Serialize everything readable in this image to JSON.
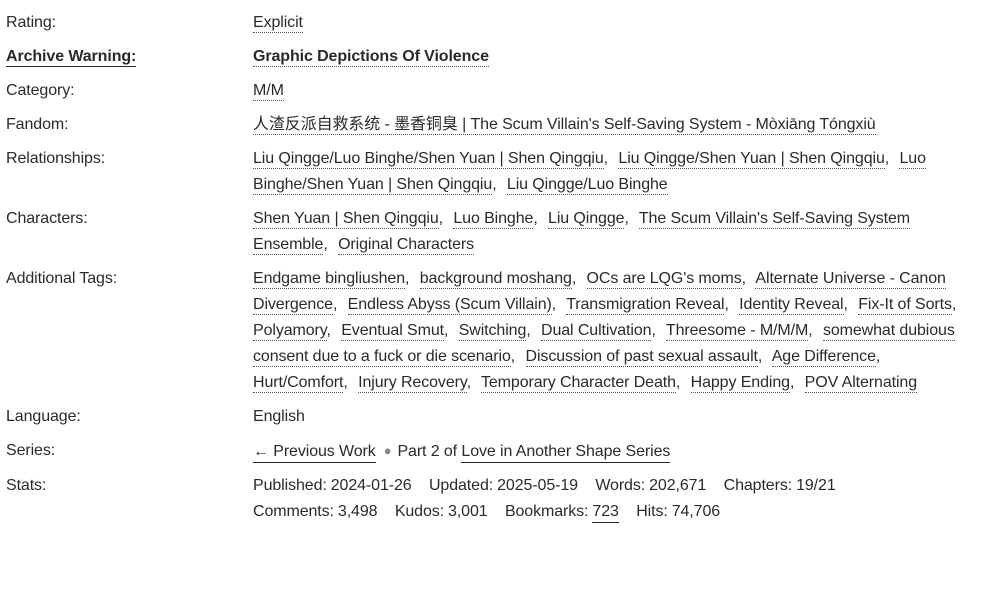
{
  "punct": {
    "comma": ","
  },
  "colors": {
    "text": "#2a2a2a",
    "dotted_underline": "#555555",
    "solid_underline": "#2a2a2a",
    "bullet": "#888888",
    "background": "#ffffff"
  },
  "rating": {
    "label": "Rating:",
    "value": "Explicit"
  },
  "warning": {
    "label": "Archive Warning:",
    "value": "Graphic Depictions Of Violence"
  },
  "category": {
    "label": "Category:",
    "value": "M/M"
  },
  "fandom": {
    "label": "Fandom:",
    "value": "人渣反派自救系统 - 墨香铜臭 | The Scum Villain's Self-Saving System - Mòxiāng Tóngxiù"
  },
  "relationships": {
    "label": "Relationships:",
    "tags": [
      "Liu Qingge/Luo Binghe/Shen Yuan | Shen Qingqiu",
      "Liu Qingge/Shen Yuan | Shen Qingqiu",
      "Luo Binghe/Shen Yuan | Shen Qingqiu",
      "Liu Qingge/Luo Binghe"
    ]
  },
  "characters": {
    "label": "Characters:",
    "tags": [
      "Shen Yuan | Shen Qingqiu",
      "Luo Binghe",
      "Liu Qingge",
      "The Scum Villain's Self-Saving System Ensemble",
      "Original Characters"
    ]
  },
  "additional": {
    "label": "Additional Tags:",
    "tags": [
      "Endgame bingliushen",
      "background moshang",
      "OCs are LQG's moms",
      "Alternate Universe - Canon Divergence",
      "Endless Abyss (Scum Villain)",
      "Transmigration Reveal",
      "Identity Reveal",
      "Fix-It of Sorts",
      "Polyamory",
      "Eventual Smut",
      "Switching",
      "Dual Cultivation",
      "Threesome - M/M/M",
      "somewhat dubious consent due to a fuck or die scenario",
      "Discussion of past sexual assault",
      "Age Difference",
      "Hurt/Comfort",
      "Injury Recovery",
      "Temporary Character Death",
      "Happy Ending",
      "POV Alternating"
    ]
  },
  "language": {
    "label": "Language:",
    "value": "English"
  },
  "series": {
    "label": "Series:",
    "prev_link": "← Previous Work",
    "bullet": "●",
    "part_text": "Part 2 of",
    "series_link": "Love in Another Shape Series"
  },
  "stats": {
    "label": "Stats:",
    "items": [
      {
        "label": "Published:",
        "value": "2024-01-26"
      },
      {
        "label": "Updated:",
        "value": "2025-05-19"
      },
      {
        "label": "Words:",
        "value": "202,671"
      },
      {
        "label": "Chapters:",
        "value": "19/21"
      },
      {
        "label": "Comments:",
        "value": "3,498"
      },
      {
        "label": "Kudos:",
        "value": "3,001"
      },
      {
        "label": "Bookmarks:",
        "value": "723"
      },
      {
        "label": "Hits:",
        "value": "74,706"
      }
    ]
  }
}
